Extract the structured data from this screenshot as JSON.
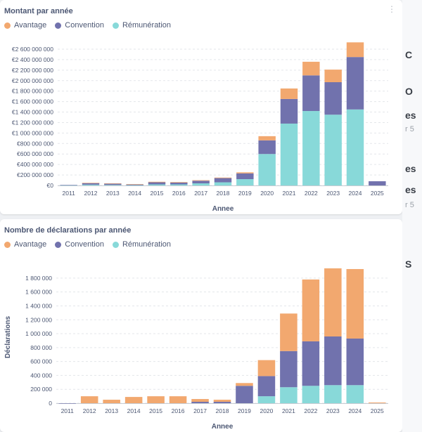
{
  "colors": {
    "Avantage": "#f2a86f",
    "Convention": "#7172ad",
    "Rémunération": "#88d9d9",
    "grid": "#e3e6ea",
    "axis": "#c7ccd3"
  },
  "legend": [
    "Avantage",
    "Convention",
    "Rémunération"
  ],
  "chart_data": [
    {
      "type": "bar",
      "stacked": true,
      "title": "Montant par année",
      "xlabel": "Annee",
      "ylabel": "",
      "categories": [
        "2011",
        "2012",
        "2013",
        "2014",
        "2015",
        "2016",
        "2017",
        "2018",
        "2019",
        "2020",
        "2021",
        "2022",
        "2023",
        "2024",
        "2025"
      ],
      "ylim": [
        0,
        2600000000
      ],
      "yticks": [
        0,
        200000000,
        400000000,
        600000000,
        800000000,
        1000000000,
        1200000000,
        1400000000,
        1600000000,
        1800000000,
        2000000000,
        2200000000,
        2400000000,
        2600000000
      ],
      "ytick_labels": [
        "€0",
        "€200 000 000",
        "€400 000 000",
        "€600 000 000",
        "€800 000 000",
        "€1 000 000 000",
        "€1 200 000 000",
        "€1 400 000 000",
        "€1 600 000 000",
        "€1 800 000 000",
        "€2 000 000 000",
        "€2 200 000 000",
        "€2 400 000 000",
        "€2 600 000 000"
      ],
      "grid": true,
      "legend_position": "top-left",
      "series": [
        {
          "name": "Rémunération",
          "values": [
            5000000,
            15000000,
            10000000,
            5000000,
            20000000,
            20000000,
            40000000,
            60000000,
            120000000,
            600000000,
            1180000000,
            1420000000,
            1350000000,
            1450000000,
            0
          ]
        },
        {
          "name": "Convention",
          "values": [
            5000000,
            30000000,
            25000000,
            15000000,
            40000000,
            35000000,
            50000000,
            80000000,
            110000000,
            260000000,
            470000000,
            680000000,
            620000000,
            1000000000,
            80000000
          ]
        },
        {
          "name": "Avantage",
          "values": [
            0,
            5000000,
            5000000,
            5000000,
            10000000,
            10000000,
            10000000,
            10000000,
            20000000,
            80000000,
            200000000,
            260000000,
            240000000,
            280000000,
            0
          ]
        }
      ]
    },
    {
      "type": "bar",
      "stacked": true,
      "title": "Nombre de déclarations par année",
      "xlabel": "Annee",
      "ylabel": "Déclarations",
      "categories": [
        "2011",
        "2012",
        "2013",
        "2014",
        "2015",
        "2016",
        "2017",
        "2018",
        "2019",
        "2020",
        "2021",
        "2022",
        "2023",
        "2024",
        "2025"
      ],
      "ylim": [
        0,
        1900000
      ],
      "yticks": [
        0,
        200000,
        400000,
        600000,
        800000,
        1000000,
        1200000,
        1400000,
        1600000,
        1800000
      ],
      "ytick_labels": [
        "0",
        "200 000",
        "400 000",
        "600 000",
        "800 000",
        "1 000 000",
        "1 200 000",
        "1 400 000",
        "1 600 000",
        "1 800 000"
      ],
      "grid": true,
      "legend_position": "top-left",
      "series": [
        {
          "name": "Rémunération",
          "values": [
            0,
            0,
            0,
            0,
            0,
            0,
            0,
            0,
            0,
            100000,
            230000,
            250000,
            260000,
            260000,
            0
          ]
        },
        {
          "name": "Convention",
          "values": [
            5.0,
            0,
            0,
            0,
            0,
            0,
            20000,
            20000,
            250000,
            290000,
            520000,
            640000,
            700000,
            670000,
            0
          ]
        },
        {
          "name": "Avantage",
          "values": [
            0,
            100000,
            50000,
            90000,
            100000,
            100000,
            40000,
            30000,
            40000,
            230000,
            540000,
            890000,
            980000,
            1000000,
            10000
          ]
        }
      ]
    }
  ],
  "edge_text": [
    "C",
    "O",
    "es",
    "r 5",
    "es",
    "es",
    "r 5",
    "S"
  ]
}
